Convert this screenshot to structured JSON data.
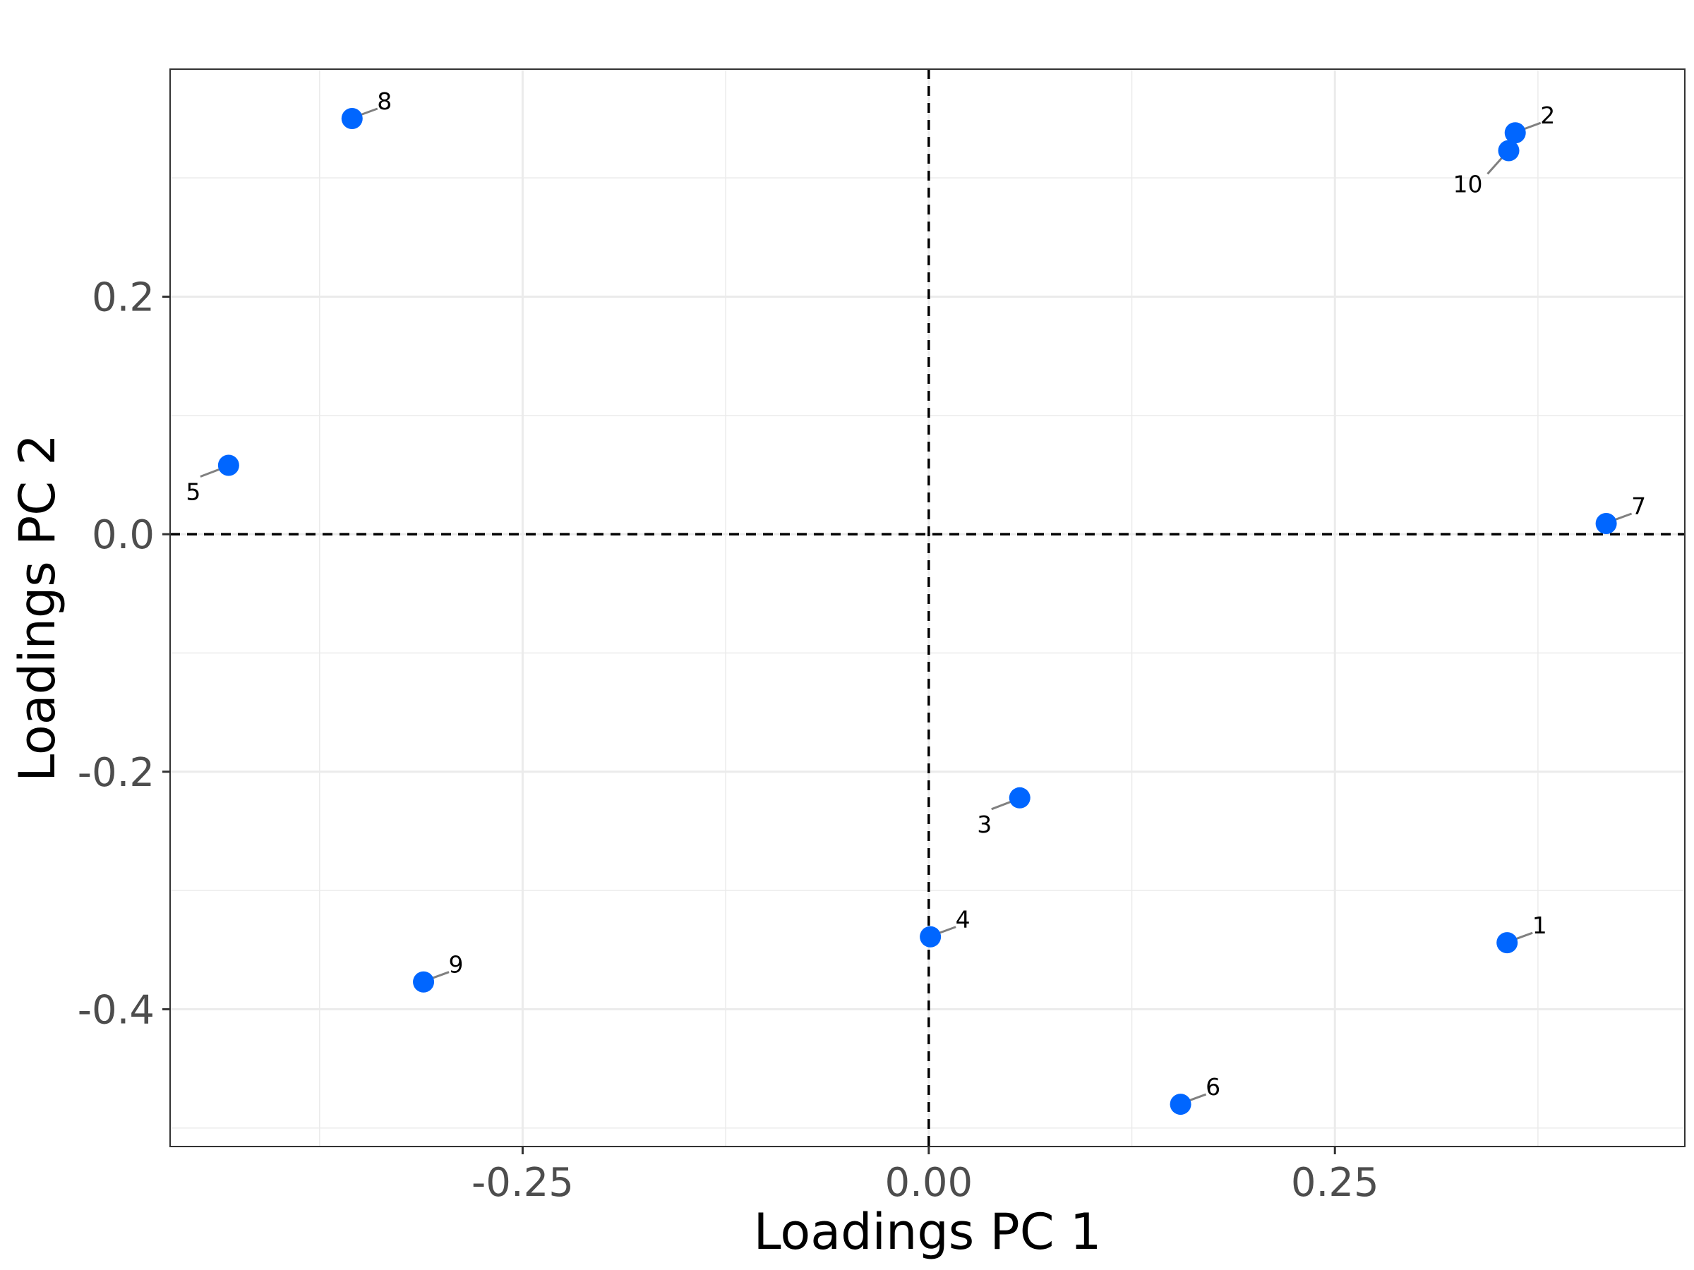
{
  "chart_data": {
    "type": "scatter",
    "xlabel": "Loadings PC 1",
    "ylabel": "Loadings PC 2",
    "xlim": [
      -0.467,
      0.4654
    ],
    "ylim": [
      -0.5156,
      0.3916
    ],
    "x_ticks": [
      -0.25,
      0.0,
      0.25
    ],
    "x_tick_labels": [
      "-0.25",
      "0.00",
      "0.25"
    ],
    "y_ticks": [
      -0.4,
      -0.2,
      0.0,
      0.2
    ],
    "y_tick_labels": [
      "-0.4",
      "-0.2",
      "0.0",
      "0.2"
    ],
    "x_minor_ticks": [
      -0.375,
      -0.125,
      0.125,
      0.375
    ],
    "y_minor_ticks": [
      -0.5,
      -0.3,
      -0.1,
      0.1,
      0.3
    ],
    "grid": true,
    "reference_lines": {
      "x": 0,
      "y": 0,
      "style": "dashed"
    },
    "point_color": "#0066ff",
    "points": [
      {
        "label": "1",
        "x": 0.356,
        "y": -0.344
      },
      {
        "label": "2",
        "x": 0.361,
        "y": 0.338
      },
      {
        "label": "3",
        "x": 0.056,
        "y": -0.222
      },
      {
        "label": "4",
        "x": 0.001,
        "y": -0.339
      },
      {
        "label": "5",
        "x": -0.431,
        "y": 0.058
      },
      {
        "label": "6",
        "x": 0.155,
        "y": -0.48
      },
      {
        "label": "7",
        "x": 0.417,
        "y": 0.009
      },
      {
        "label": "8",
        "x": -0.355,
        "y": 0.35
      },
      {
        "label": "9",
        "x": -0.311,
        "y": -0.377
      },
      {
        "label": "10",
        "x": 0.357,
        "y": 0.323
      }
    ]
  }
}
